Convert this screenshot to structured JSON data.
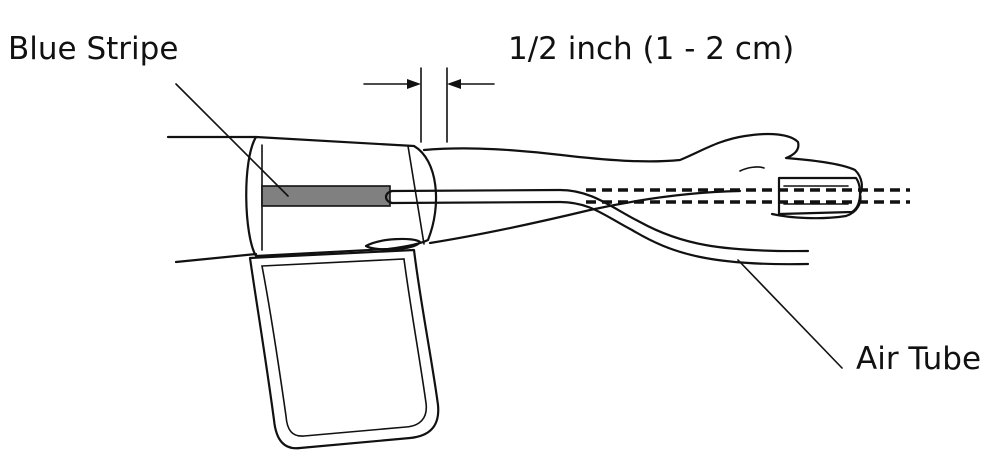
{
  "labels": {
    "blue_stripe": "Blue Stripe",
    "dimension": "1/2 inch (1 - 2 cm)",
    "air_tube": "Air Tube"
  },
  "colors": {
    "line": "#111111",
    "stripe_fill": "#808080",
    "background": "#ffffff"
  }
}
